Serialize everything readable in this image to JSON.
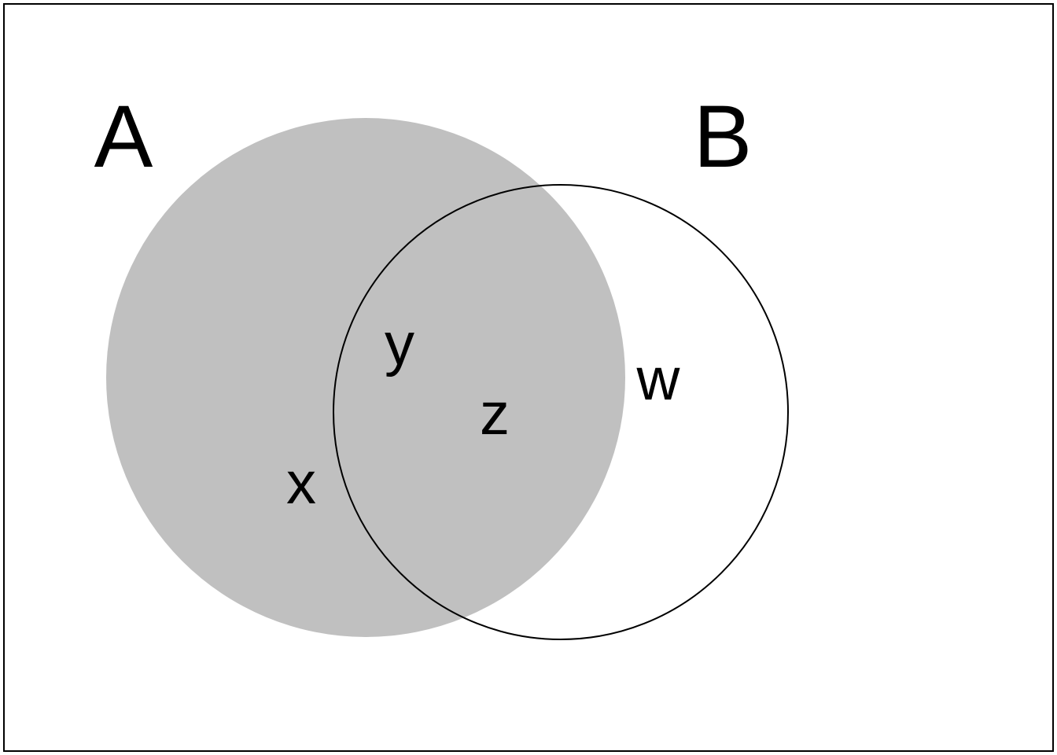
{
  "diagram": {
    "type": "venn",
    "sets": [
      {
        "id": "A",
        "label": "A",
        "shaded": true
      },
      {
        "id": "B",
        "label": "B",
        "shaded": false
      }
    ],
    "regions": [
      {
        "label": "x",
        "membership": [
          "A"
        ]
      },
      {
        "label": "y",
        "membership": [
          "A",
          "B"
        ]
      },
      {
        "label": "z",
        "membership": [
          "A",
          "B"
        ]
      },
      {
        "label": "w",
        "membership": [
          "B"
        ]
      }
    ]
  },
  "colors": {
    "shaded_fill": "#c0c0c0",
    "outline": "#000000",
    "background": "#ffffff",
    "text": "#000000"
  }
}
